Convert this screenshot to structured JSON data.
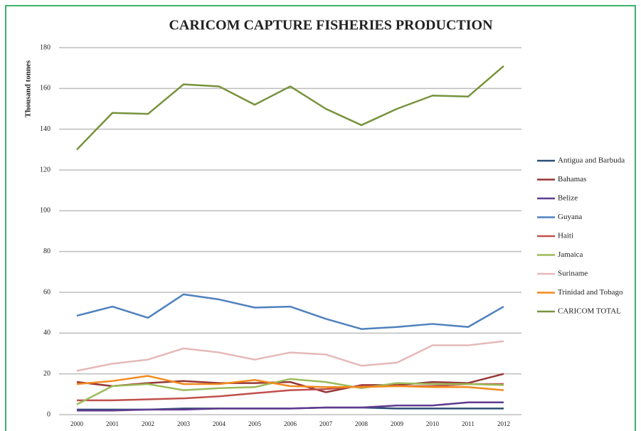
{
  "chart_data": {
    "type": "line",
    "title": "CARICOM CAPTURE FISHERIES PRODUCTION",
    "y_label": "Thousand tonnes",
    "categories": [
      "2000",
      "2001",
      "2002",
      "2003",
      "2004",
      "2005",
      "2006",
      "2007",
      "2008",
      "2009",
      "2010",
      "2011",
      "2012"
    ],
    "ylim": [
      0,
      180
    ],
    "yticks": [
      0,
      20,
      40,
      60,
      80,
      100,
      120,
      140,
      160,
      180
    ],
    "grid": true,
    "legend": "right",
    "series": [
      {
        "name": "Antigua and Barbuda",
        "color": "#2c4d75",
        "values": [
          2.5,
          2.5,
          2.5,
          3,
          3,
          3,
          3,
          3.5,
          3.5,
          3,
          3,
          3,
          3
        ]
      },
      {
        "name": "Bahamas",
        "color": "#953735",
        "values": [
          16,
          14,
          15.5,
          16.5,
          15.5,
          15.5,
          16,
          11,
          14.5,
          14.5,
          16,
          15.5,
          20
        ]
      },
      {
        "name": "Belize",
        "color": "#5f3c8f",
        "values": [
          2,
          2,
          2.5,
          2.5,
          3,
          3,
          3,
          3.5,
          3.5,
          4.5,
          4.5,
          6,
          6
        ]
      },
      {
        "name": "Guyana",
        "color": "#4f81bd",
        "values": [
          48.5,
          53,
          47.5,
          59,
          56.5,
          52.5,
          53,
          47,
          42,
          43,
          44.5,
          43,
          53
        ]
      },
      {
        "name": "Haiti",
        "color": "#c0504d",
        "values": [
          7,
          7,
          7.5,
          8,
          9,
          10.5,
          12,
          12.5,
          14,
          14,
          14,
          15,
          15
        ]
      },
      {
        "name": "Jamaica",
        "color": "#9bbb59",
        "values": [
          5,
          14,
          15,
          12,
          13,
          13.5,
          17.5,
          16,
          13,
          15.5,
          15,
          15,
          14.5
        ]
      },
      {
        "name": "Suriname",
        "color": "#e6b9b8",
        "values": [
          21.5,
          25,
          27,
          32.5,
          30.5,
          27,
          30.5,
          29.5,
          24,
          25.5,
          34,
          34,
          36
        ]
      },
      {
        "name": "Trinidad and Tobago",
        "color": "#f38a1d",
        "values": [
          15,
          16.5,
          19,
          15,
          15,
          17,
          14,
          13.5,
          13.5,
          14,
          13.5,
          13.5,
          12
        ]
      },
      {
        "name": "CARICOM TOTAL",
        "color": "#77933c",
        "values": [
          130,
          148,
          147.5,
          162,
          161,
          152,
          161,
          150,
          142,
          150,
          156.5,
          156,
          171
        ]
      }
    ]
  }
}
